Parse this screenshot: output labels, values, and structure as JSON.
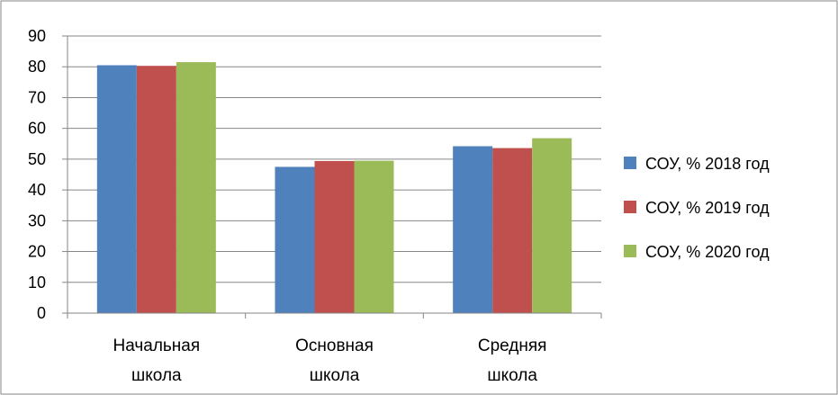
{
  "chart_data": {
    "type": "bar",
    "title": "",
    "xlabel": "",
    "ylabel": "",
    "categories": [
      [
        "Начальная",
        "школа"
      ],
      [
        "Основная",
        "школа"
      ],
      [
        "Средняя",
        "школа"
      ]
    ],
    "series": [
      {
        "name": "СОУ, % 2018 год",
        "color": "#4F81BD",
        "values": [
          80.5,
          47.5,
          54.2
        ]
      },
      {
        "name": "СОУ, % 2019 год",
        "color": "#C0504D",
        "values": [
          80.3,
          49.4,
          53.6
        ]
      },
      {
        "name": "СОУ, % 2020 год",
        "color": "#9BBB59",
        "values": [
          81.5,
          49.5,
          56.8
        ]
      }
    ],
    "ylim": [
      0,
      90
    ],
    "yticks": [
      "0",
      "10",
      "20",
      "30",
      "40",
      "50",
      "60",
      "70",
      "80",
      "90"
    ],
    "grid": true,
    "legend": "right"
  }
}
